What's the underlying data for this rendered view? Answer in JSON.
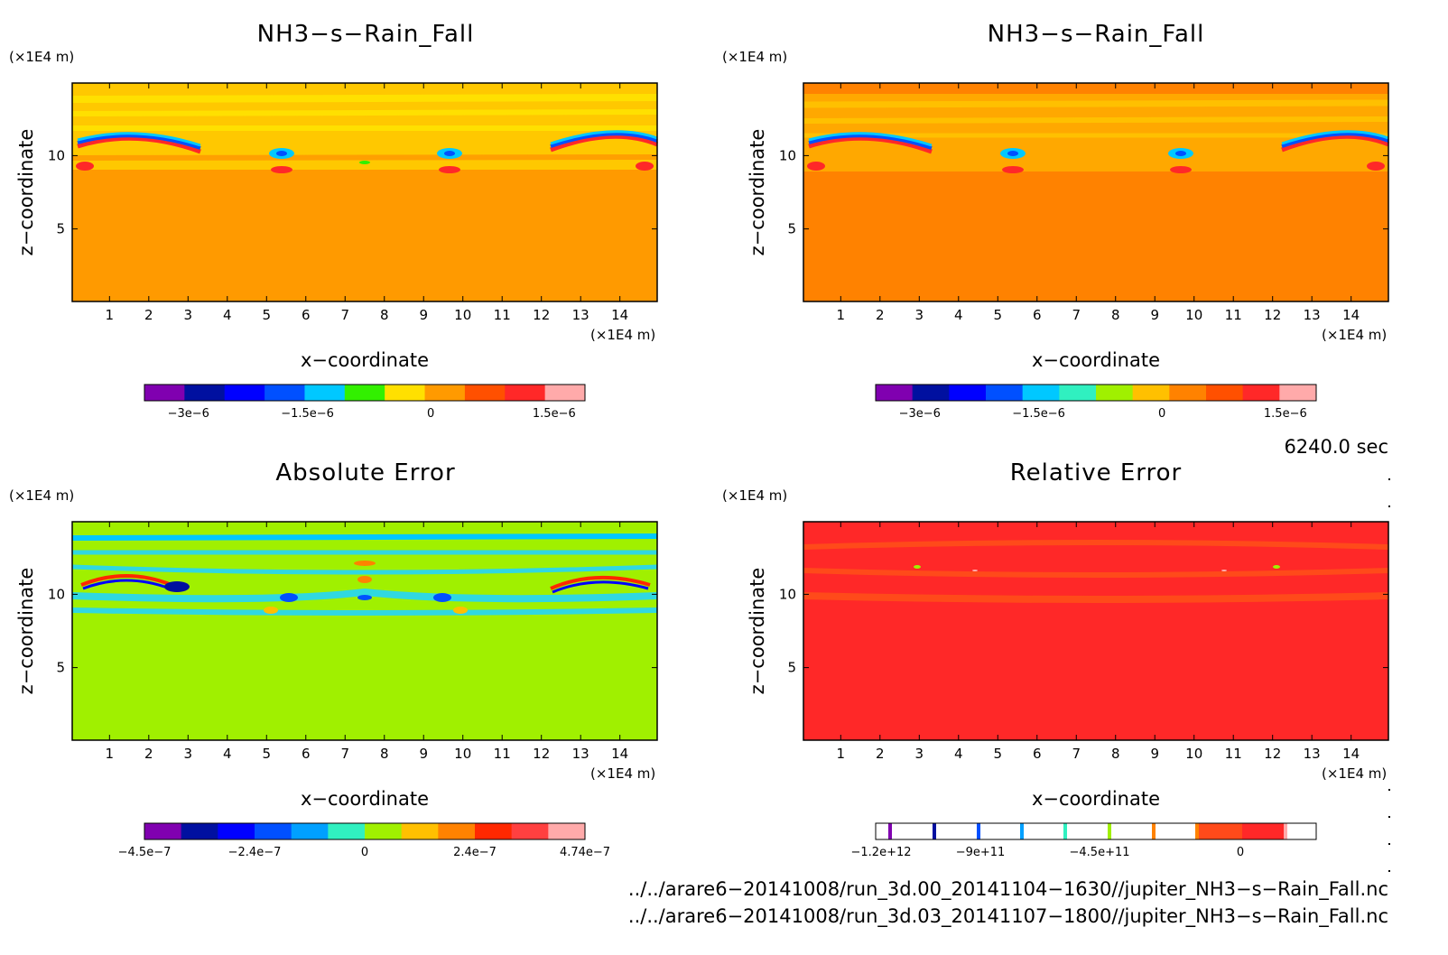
{
  "panels": [
    {
      "title": "NH3−s−Rain_Fall",
      "yunit": "(×1E4 m)",
      "xunit": "(×1E4 m)",
      "xlabel": "x−coordinate",
      "ylabel": "z−coordinate",
      "background": "#ff9a00",
      "colorbar": {
        "colors": [
          "#8000b0",
          "#0010a0",
          "#0000ff",
          "#0050ff",
          "#00c8ff",
          "#32f000",
          "#ffe000",
          "#ff9a00",
          "#ff5000",
          "#ff2828",
          "#ffaaaa"
        ],
        "labels": [
          "−3e−6",
          "−1.5e−6",
          "0",
          "1.5e−6"
        ]
      }
    },
    {
      "title": "NH3−s−Rain_Fall",
      "yunit": "(×1E4 m)",
      "xunit": "(×1E4 m)",
      "xlabel": "x−coordinate",
      "ylabel": "z−coordinate",
      "background": "#ff8200",
      "colorbar": {
        "colors": [
          "#8000b0",
          "#0010a0",
          "#0000ff",
          "#0050ff",
          "#00c8ff",
          "#30f0c0",
          "#a0f000",
          "#ffc000",
          "#ff8200",
          "#ff5000",
          "#ff2828",
          "#ffaaaa"
        ],
        "labels": [
          "−3e−6",
          "−1.5e−6",
          "0",
          "1.5e−6"
        ]
      }
    },
    {
      "title": "Absolute Error",
      "yunit": "(×1E4 m)",
      "xunit": "(×1E4 m)",
      "xlabel": "x−coordinate",
      "ylabel": "z−coordinate",
      "background": "#a0f000",
      "colorbar": {
        "colors": [
          "#8000b0",
          "#0010a0",
          "#0000ff",
          "#0050ff",
          "#00a0ff",
          "#30f0c0",
          "#a0f000",
          "#ffc000",
          "#ff8200",
          "#ff2800",
          "#ff4040",
          "#ffaaaa"
        ],
        "labels": [
          "−4.5e−7",
          "−2.4e−7",
          "0",
          "2.4e−7",
          "4.74e−7"
        ]
      }
    },
    {
      "title": "Relative Error",
      "yunit": "(×1E4 m)",
      "xunit": "(×1E4 m)",
      "xlabel": "x−coordinate",
      "ylabel": "z−coordinate",
      "background": "#ff2828",
      "colorbar": {
        "labels": [
          "−1.2e+12",
          "−9e+11",
          "−4.5e+11",
          "0"
        ]
      }
    }
  ],
  "time_label": "6240.0 sec",
  "file_paths": [
    "../../arare6−20141008/run_3d.00_20141104−1630//jupiter_NH3−s−Rain_Fall.nc",
    "../../arare6−20141008/run_3d.03_20141107−1800//jupiter_NH3−s−Rain_Fall.nc"
  ],
  "chart_data": [
    {
      "type": "heatmap",
      "title": "NH3−s−Rain_Fall",
      "xlabel": "x−coordinate",
      "ylabel": "z−coordinate",
      "x_ticks": [
        1,
        2,
        3,
        4,
        5,
        6,
        7,
        8,
        9,
        10,
        11,
        12,
        13,
        14
      ],
      "y_ticks": [
        5,
        10
      ],
      "xlim": [
        0.05,
        14.95
      ],
      "ylim": [
        0.05,
        14.95
      ],
      "colorbar_ticks": [
        "−3e−6",
        "−1.5e−6",
        "0",
        "1.5e−6"
      ]
    },
    {
      "type": "heatmap",
      "title": "NH3−s−Rain_Fall",
      "xlabel": "x−coordinate",
      "ylabel": "z−coordinate",
      "x_ticks": [
        1,
        2,
        3,
        4,
        5,
        6,
        7,
        8,
        9,
        10,
        11,
        12,
        13,
        14
      ],
      "y_ticks": [
        5,
        10
      ],
      "xlim": [
        0.05,
        14.95
      ],
      "ylim": [
        0.05,
        14.95
      ],
      "colorbar_ticks": [
        "−3e−6",
        "−1.5e−6",
        "0",
        "1.5e−6"
      ]
    },
    {
      "type": "heatmap",
      "title": "Absolute Error",
      "xlabel": "x−coordinate",
      "ylabel": "z−coordinate",
      "x_ticks": [
        1,
        2,
        3,
        4,
        5,
        6,
        7,
        8,
        9,
        10,
        11,
        12,
        13,
        14
      ],
      "y_ticks": [
        5,
        10
      ],
      "xlim": [
        0.05,
        14.95
      ],
      "ylim": [
        0.05,
        14.95
      ],
      "colorbar_ticks": [
        "−4.5e−7",
        "−2.4e−7",
        "0",
        "2.4e−7",
        "4.74e−7"
      ]
    },
    {
      "type": "heatmap",
      "title": "Relative Error",
      "xlabel": "x−coordinate",
      "ylabel": "z−coordinate",
      "x_ticks": [
        1,
        2,
        3,
        4,
        5,
        6,
        7,
        8,
        9,
        10,
        11,
        12,
        13,
        14
      ],
      "y_ticks": [
        5,
        10
      ],
      "xlim": [
        0.05,
        14.95
      ],
      "ylim": [
        0.05,
        14.95
      ],
      "colorbar_ticks": [
        "−1.2e+12",
        "−9e+11",
        "−4.5e+11",
        "0"
      ]
    }
  ]
}
